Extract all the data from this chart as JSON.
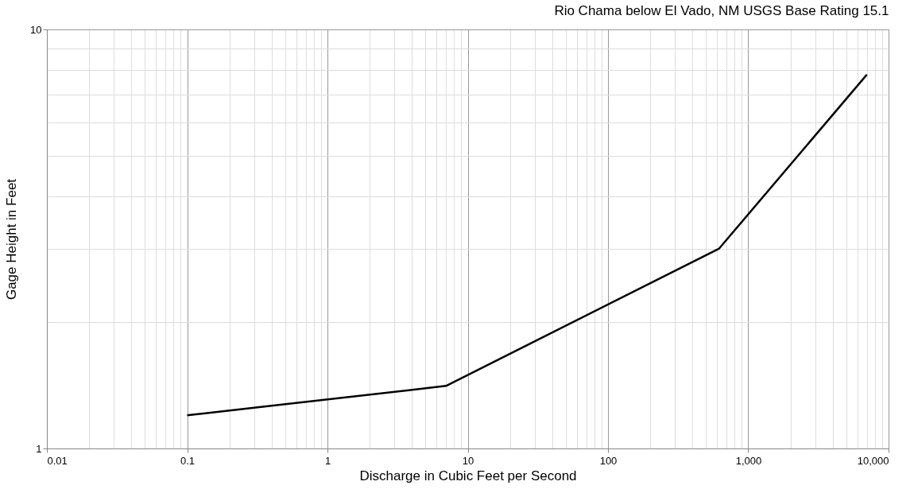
{
  "chart_data": {
    "type": "line",
    "title": "Rio Chama below El Vado, NM  USGS Base Rating 15.1",
    "xlabel": "Discharge in Cubic Feet per Second",
    "ylabel": "Gage Height in Feet",
    "log": "xy",
    "grid": true,
    "marker": "none",
    "line_style": "solid",
    "x": [
      0.1,
      7,
      620,
      7000
    ],
    "series": [
      {
        "color": "#000000",
        "values": [
          1.2,
          1.41,
          3.0,
          7.8
        ]
      }
    ],
    "xlim": [
      0.01,
      10000
    ],
    "ylim": [
      1,
      10
    ],
    "xticks": [
      0.01,
      {
        "value": 0.02,
        "label": null
      },
      {
        "value": 0.03,
        "label": null
      },
      {
        "value": 0.04,
        "label": null
      },
      {
        "value": 0.05,
        "label": null
      },
      {
        "value": 0.06,
        "label": null
      },
      {
        "value": 0.07,
        "label": null
      },
      {
        "value": 0.08,
        "label": null
      },
      {
        "value": 0.09,
        "label": null
      },
      0.1,
      {
        "value": 0.2,
        "label": null
      },
      {
        "value": 0.3,
        "label": null
      },
      {
        "value": 0.4,
        "label": null
      },
      {
        "value": 0.5,
        "label": null
      },
      {
        "value": 0.6,
        "label": null
      },
      {
        "value": 0.7,
        "label": null
      },
      {
        "value": 0.8,
        "label": null
      },
      {
        "value": 0.9,
        "label": null
      },
      1,
      {
        "value": 2,
        "label": null
      },
      {
        "value": 3,
        "label": null
      },
      {
        "value": 4,
        "label": null
      },
      {
        "value": 5,
        "label": null
      },
      {
        "value": 6,
        "label": null
      },
      {
        "value": 7,
        "label": null
      },
      {
        "value": 8,
        "label": null
      },
      {
        "value": 9,
        "label": null
      },
      10,
      {
        "value": 20,
        "label": null
      },
      {
        "value": 30,
        "label": null
      },
      {
        "value": 40,
        "label": null
      },
      {
        "value": 50,
        "label": null
      },
      {
        "value": 60,
        "label": null
      },
      {
        "value": 70,
        "label": null
      },
      {
        "value": 80,
        "label": null
      },
      {
        "value": 90,
        "label": null
      },
      100,
      {
        "value": 200,
        "label": null
      },
      {
        "value": 300,
        "label": null
      },
      {
        "value": 400,
        "label": null
      },
      {
        "value": 500,
        "label": null
      },
      {
        "value": 600,
        "label": null
      },
      {
        "value": 700,
        "label": null
      },
      {
        "value": 800,
        "label": null
      },
      {
        "value": 900,
        "label": null
      },
      {
        "value": 1000,
        "label": "1,000"
      },
      {
        "value": 2000,
        "label": null
      },
      {
        "value": 3000,
        "label": null
      },
      {
        "value": 4000,
        "label": null
      },
      {
        "value": 5000,
        "label": null
      },
      {
        "value": 6000,
        "label": null
      },
      {
        "value": 7000,
        "label": null
      },
      {
        "value": 8000,
        "label": null
      },
      {
        "value": 9000,
        "label": null
      },
      {
        "value": 10000,
        "label": "10,000"
      }
    ],
    "yticks": [
      1,
      {
        "value": 2,
        "label": null
      },
      {
        "value": 3,
        "label": null
      },
      {
        "value": 4,
        "label": null
      },
      {
        "value": 5,
        "label": null
      },
      {
        "value": 6,
        "label": null
      },
      {
        "value": 7,
        "label": null
      },
      {
        "value": 8,
        "label": null
      },
      {
        "value": 9,
        "label": null
      },
      10
    ]
  }
}
